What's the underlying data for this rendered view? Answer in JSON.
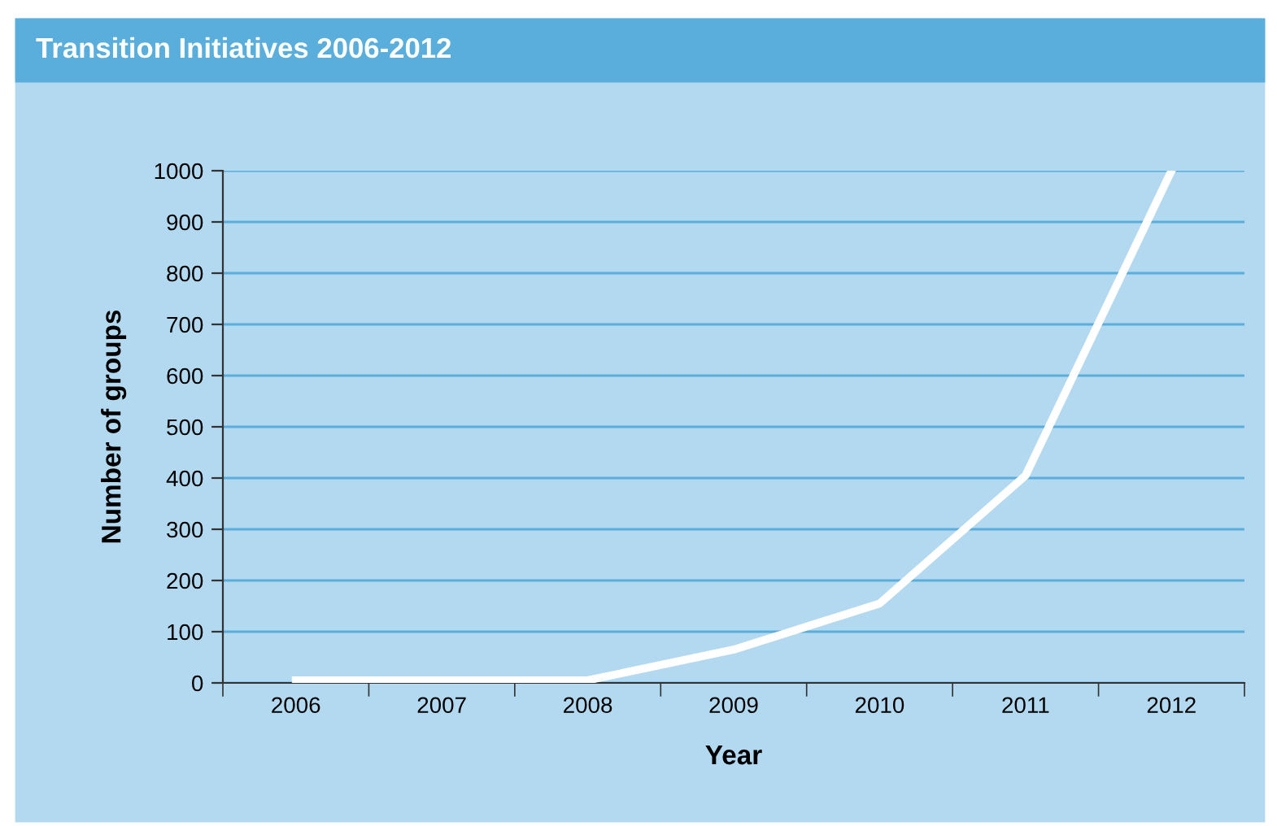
{
  "chart_data": {
    "type": "line",
    "title": "Transition Initiatives 2006-2012",
    "xlabel": "Year",
    "ylabel": "Number of groups",
    "categories": [
      "2006",
      "2007",
      "2008",
      "2009",
      "2010",
      "2011",
      "2012"
    ],
    "series": [
      {
        "color": "#ffffff",
        "values": [
          5,
          5,
          5,
          65,
          155,
          405,
          1000
        ]
      }
    ],
    "ylim": [
      0,
      1000
    ],
    "yticks": [
      0,
      100,
      200,
      300,
      400,
      500,
      600,
      700,
      800,
      900,
      1000
    ],
    "grid": "y",
    "legend": false,
    "marker": "none",
    "line_style": "solid"
  }
}
